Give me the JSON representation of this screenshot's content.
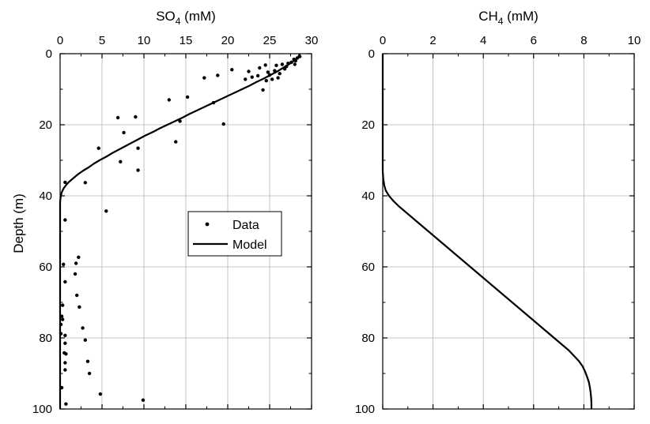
{
  "chart_data": [
    {
      "type": "scatter",
      "title": "",
      "xlabel": "SO4 (mM)",
      "xlabel_main": "SO",
      "xlabel_sub": "4",
      "xlabel_rest": " (mM)",
      "ylabel": "Depth (m)",
      "xlim": [
        0,
        30
      ],
      "ylim": [
        0,
        100
      ],
      "y_inverted": true,
      "x_axis_position": "top",
      "xticks": [
        "0",
        "5",
        "10",
        "15",
        "20",
        "25",
        "30"
      ],
      "yticks": [
        "0",
        "20",
        "40",
        "60",
        "80",
        "100"
      ],
      "grid": true,
      "legend": {
        "placement": "center",
        "entries": [
          {
            "label": "Data",
            "marker": "dot"
          },
          {
            "label": "Model",
            "marker": "line"
          }
        ]
      },
      "series": [
        {
          "name": "Data",
          "kind": "points",
          "points": [
            [
              28.6,
              0.8
            ],
            [
              28.3,
              1.2
            ],
            [
              27.9,
              1.6
            ],
            [
              28.1,
              2.0
            ],
            [
              27.6,
              2.4
            ],
            [
              27.2,
              2.7
            ],
            [
              28.0,
              3.0
            ],
            [
              26.5,
              3.0
            ],
            [
              25.8,
              3.3
            ],
            [
              27.0,
              3.6
            ],
            [
              24.5,
              3.2
            ],
            [
              23.8,
              4.0
            ],
            [
              26.8,
              4.3
            ],
            [
              25.6,
              4.8
            ],
            [
              24.8,
              5.2
            ],
            [
              22.5,
              5.0
            ],
            [
              26.2,
              5.6
            ],
            [
              25.0,
              6.0
            ],
            [
              23.6,
              6.2
            ],
            [
              22.9,
              6.6
            ],
            [
              20.5,
              4.5
            ],
            [
              18.8,
              6.1
            ],
            [
              17.2,
              6.8
            ],
            [
              26.0,
              6.8
            ],
            [
              25.3,
              7.2
            ],
            [
              24.6,
              7.6
            ],
            [
              22.1,
              7.2
            ],
            [
              24.2,
              10.2
            ],
            [
              15.2,
              12.2
            ],
            [
              13.0,
              13.0
            ],
            [
              18.3,
              13.8
            ],
            [
              9.0,
              17.8
            ],
            [
              6.9,
              18.0
            ],
            [
              14.3,
              19.0
            ],
            [
              19.5,
              19.8
            ],
            [
              7.6,
              22.2
            ],
            [
              13.8,
              24.8
            ],
            [
              4.6,
              26.6
            ],
            [
              9.3,
              26.6
            ],
            [
              7.2,
              30.4
            ],
            [
              9.3,
              32.8
            ],
            [
              3.0,
              36.3
            ],
            [
              0.6,
              36.2
            ],
            [
              5.5,
              44.3
            ],
            [
              0.6,
              46.8
            ],
            [
              2.2,
              57.3
            ],
            [
              1.9,
              59.0
            ],
            [
              0.4,
              59.3
            ],
            [
              1.8,
              62.0
            ],
            [
              0.6,
              64.2
            ],
            [
              2.0,
              68.0
            ],
            [
              2.3,
              71.3
            ],
            [
              0.3,
              70.8
            ],
            [
              0.2,
              73.9
            ],
            [
              0.3,
              74.8
            ],
            [
              0.1,
              76.2
            ],
            [
              2.7,
              77.2
            ],
            [
              0.1,
              78.8
            ],
            [
              0.6,
              79.3
            ],
            [
              3.0,
              80.6
            ],
            [
              0.6,
              81.5
            ],
            [
              0.5,
              84.2
            ],
            [
              0.7,
              84.5
            ],
            [
              3.3,
              86.6
            ],
            [
              0.6,
              87.0
            ],
            [
              0.6,
              89.0
            ],
            [
              3.5,
              90.0
            ],
            [
              0.2,
              94.0
            ],
            [
              4.8,
              95.8
            ],
            [
              9.9,
              97.5
            ],
            [
              0.7,
              98.6
            ]
          ]
        },
        {
          "name": "Model",
          "kind": "line",
          "points": [
            [
              28.6,
              0
            ],
            [
              28.4,
              1
            ],
            [
              27.9,
              2
            ],
            [
              27.3,
              3
            ],
            [
              26.6,
              4
            ],
            [
              25.9,
              5
            ],
            [
              25.1,
              6
            ],
            [
              24.3,
              7
            ],
            [
              23.4,
              8
            ],
            [
              22.6,
              9
            ],
            [
              21.7,
              10
            ],
            [
              20.8,
              11
            ],
            [
              19.9,
              12
            ],
            [
              19.0,
              13
            ],
            [
              18.1,
              14
            ],
            [
              17.2,
              15
            ],
            [
              16.3,
              16
            ],
            [
              15.4,
              17
            ],
            [
              14.6,
              18
            ],
            [
              13.7,
              19
            ],
            [
              12.8,
              20
            ],
            [
              11.9,
              21
            ],
            [
              11.1,
              22
            ],
            [
              10.2,
              23
            ],
            [
              9.4,
              24
            ],
            [
              8.6,
              25
            ],
            [
              7.8,
              26
            ],
            [
              7.0,
              27
            ],
            [
              6.2,
              28
            ],
            [
              5.5,
              29
            ],
            [
              4.7,
              30
            ],
            [
              4.0,
              31
            ],
            [
              3.4,
              32
            ],
            [
              2.7,
              33
            ],
            [
              2.1,
              34
            ],
            [
              1.6,
              35
            ],
            [
              1.1,
              36
            ],
            [
              0.7,
              37
            ],
            [
              0.4,
              38
            ],
            [
              0.2,
              39
            ],
            [
              0.1,
              40
            ],
            [
              0.03,
              41
            ],
            [
              0.0,
              42
            ],
            [
              0.0,
              44
            ],
            [
              0.0,
              46
            ],
            [
              0.0,
              100
            ]
          ]
        }
      ]
    },
    {
      "type": "line",
      "title": "",
      "xlabel": "CH4 (mM)",
      "xlabel_main": "CH",
      "xlabel_sub": "4",
      "xlabel_rest": " (mM)",
      "ylabel": "",
      "xlim": [
        0,
        10
      ],
      "ylim": [
        0,
        100
      ],
      "y_inverted": true,
      "x_axis_position": "top",
      "xticks": [
        "0",
        "2",
        "4",
        "6",
        "8",
        "10"
      ],
      "yticks": [
        "0",
        "20",
        "40",
        "60",
        "80",
        "100"
      ],
      "grid": true,
      "series": [
        {
          "name": "",
          "kind": "line",
          "points": [
            [
              0.0,
              0
            ],
            [
              0.0,
              33
            ],
            [
              0.02,
              35
            ],
            [
              0.06,
              37
            ],
            [
              0.12,
              38.5
            ],
            [
              0.25,
              40
            ],
            [
              0.43,
              41.5
            ],
            [
              0.65,
              43
            ],
            [
              0.9,
              44.5
            ],
            [
              1.15,
              46
            ],
            [
              1.4,
              47.5
            ],
            [
              1.65,
              49
            ],
            [
              1.9,
              50.5
            ],
            [
              2.15,
              52
            ],
            [
              2.4,
              53.5
            ],
            [
              2.65,
              55
            ],
            [
              2.9,
              56.5
            ],
            [
              3.15,
              58
            ],
            [
              3.4,
              59.5
            ],
            [
              3.65,
              61
            ],
            [
              3.9,
              62.5
            ],
            [
              4.15,
              64
            ],
            [
              4.4,
              65.5
            ],
            [
              4.65,
              67
            ],
            [
              4.9,
              68.5
            ],
            [
              5.15,
              70
            ],
            [
              5.4,
              71.5
            ],
            [
              5.65,
              73
            ],
            [
              5.9,
              74.5
            ],
            [
              6.15,
              76
            ],
            [
              6.4,
              77.5
            ],
            [
              6.65,
              79
            ],
            [
              6.9,
              80.5
            ],
            [
              7.15,
              82
            ],
            [
              7.4,
              83.5
            ],
            [
              7.6,
              85
            ],
            [
              7.8,
              86.5
            ],
            [
              7.95,
              88
            ],
            [
              8.05,
              89.5
            ],
            [
              8.13,
              91
            ],
            [
              8.2,
              92.5
            ],
            [
              8.24,
              94
            ],
            [
              8.27,
              95.5
            ],
            [
              8.29,
              97
            ],
            [
              8.3,
              98.5
            ],
            [
              8.3,
              100
            ]
          ]
        }
      ]
    }
  ]
}
